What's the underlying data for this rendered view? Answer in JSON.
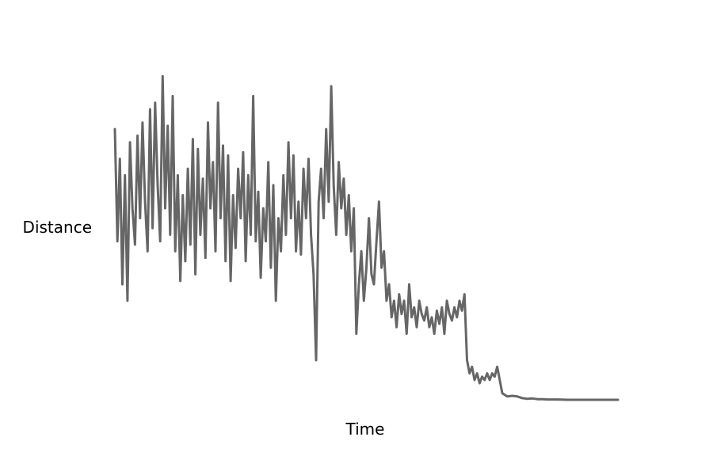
{
  "chart_data": {
    "type": "line",
    "title": "",
    "xlabel": "Time",
    "ylabel": "Distance",
    "axes_visible": false,
    "grid": false,
    "legend": "none",
    "line_color": "#666666",
    "xlim": [
      0,
      1000
    ],
    "ylim": [
      0,
      1
    ],
    "series": [
      {
        "name": "",
        "points": [
          [
            0,
            0.82
          ],
          [
            5,
            0.48
          ],
          [
            10,
            0.73
          ],
          [
            15,
            0.35
          ],
          [
            20,
            0.68
          ],
          [
            25,
            0.3
          ],
          [
            30,
            0.78
          ],
          [
            35,
            0.58
          ],
          [
            40,
            0.47
          ],
          [
            45,
            0.8
          ],
          [
            50,
            0.55
          ],
          [
            55,
            0.84
          ],
          [
            60,
            0.6
          ],
          [
            65,
            0.45
          ],
          [
            70,
            0.88
          ],
          [
            75,
            0.52
          ],
          [
            80,
            0.9
          ],
          [
            85,
            0.65
          ],
          [
            90,
            0.48
          ],
          [
            95,
            0.98
          ],
          [
            100,
            0.58
          ],
          [
            105,
            0.83
          ],
          [
            110,
            0.5
          ],
          [
            115,
            0.92
          ],
          [
            120,
            0.45
          ],
          [
            125,
            0.68
          ],
          [
            130,
            0.36
          ],
          [
            135,
            0.62
          ],
          [
            140,
            0.42
          ],
          [
            145,
            0.7
          ],
          [
            150,
            0.47
          ],
          [
            155,
            0.79
          ],
          [
            160,
            0.38
          ],
          [
            165,
            0.76
          ],
          [
            170,
            0.5
          ],
          [
            175,
            0.67
          ],
          [
            180,
            0.43
          ],
          [
            185,
            0.84
          ],
          [
            190,
            0.58
          ],
          [
            195,
            0.72
          ],
          [
            200,
            0.45
          ],
          [
            205,
            0.9
          ],
          [
            210,
            0.55
          ],
          [
            215,
            0.77
          ],
          [
            220,
            0.42
          ],
          [
            225,
            0.74
          ],
          [
            230,
            0.36
          ],
          [
            235,
            0.62
          ],
          [
            240,
            0.46
          ],
          [
            245,
            0.7
          ],
          [
            250,
            0.55
          ],
          [
            255,
            0.75
          ],
          [
            260,
            0.42
          ],
          [
            265,
            0.68
          ],
          [
            270,
            0.5
          ],
          [
            275,
            0.92
          ],
          [
            280,
            0.48
          ],
          [
            285,
            0.63
          ],
          [
            290,
            0.37
          ],
          [
            295,
            0.58
          ],
          [
            300,
            0.48
          ],
          [
            305,
            0.72
          ],
          [
            310,
            0.4
          ],
          [
            315,
            0.65
          ],
          [
            320,
            0.3
          ],
          [
            325,
            0.55
          ],
          [
            330,
            0.45
          ],
          [
            335,
            0.68
          ],
          [
            340,
            0.5
          ],
          [
            345,
            0.78
          ],
          [
            350,
            0.55
          ],
          [
            355,
            0.74
          ],
          [
            360,
            0.45
          ],
          [
            365,
            0.6
          ],
          [
            370,
            0.44
          ],
          [
            375,
            0.7
          ],
          [
            380,
            0.55
          ],
          [
            385,
            0.73
          ],
          [
            390,
            0.5
          ],
          [
            395,
            0.38
          ],
          [
            400,
            0.12
          ],
          [
            405,
            0.6
          ],
          [
            410,
            0.7
          ],
          [
            415,
            0.55
          ],
          [
            420,
            0.82
          ],
          [
            425,
            0.6
          ],
          [
            430,
            0.95
          ],
          [
            435,
            0.65
          ],
          [
            440,
            0.5
          ],
          [
            445,
            0.72
          ],
          [
            450,
            0.58
          ],
          [
            455,
            0.67
          ],
          [
            460,
            0.5
          ],
          [
            465,
            0.62
          ],
          [
            470,
            0.45
          ],
          [
            475,
            0.58
          ],
          [
            480,
            0.2
          ],
          [
            485,
            0.35
          ],
          [
            490,
            0.45
          ],
          [
            495,
            0.3
          ],
          [
            500,
            0.4
          ],
          [
            505,
            0.55
          ],
          [
            510,
            0.38
          ],
          [
            515,
            0.35
          ],
          [
            520,
            0.48
          ],
          [
            525,
            0.6
          ],
          [
            530,
            0.4
          ],
          [
            535,
            0.45
          ],
          [
            540,
            0.3
          ],
          [
            545,
            0.35
          ],
          [
            550,
            0.25
          ],
          [
            555,
            0.3
          ],
          [
            560,
            0.22
          ],
          [
            565,
            0.32
          ],
          [
            570,
            0.26
          ],
          [
            575,
            0.3
          ],
          [
            580,
            0.2
          ],
          [
            585,
            0.35
          ],
          [
            590,
            0.25
          ],
          [
            595,
            0.28
          ],
          [
            600,
            0.22
          ],
          [
            605,
            0.3
          ],
          [
            610,
            0.26
          ],
          [
            615,
            0.24
          ],
          [
            620,
            0.28
          ],
          [
            625,
            0.22
          ],
          [
            630,
            0.25
          ],
          [
            635,
            0.2
          ],
          [
            640,
            0.27
          ],
          [
            645,
            0.23
          ],
          [
            650,
            0.28
          ],
          [
            655,
            0.2
          ],
          [
            660,
            0.3
          ],
          [
            665,
            0.26
          ],
          [
            670,
            0.24
          ],
          [
            675,
            0.28
          ],
          [
            680,
            0.25
          ],
          [
            685,
            0.3
          ],
          [
            690,
            0.27
          ],
          [
            695,
            0.32
          ],
          [
            700,
            0.12
          ],
          [
            705,
            0.08
          ],
          [
            710,
            0.1
          ],
          [
            715,
            0.06
          ],
          [
            720,
            0.08
          ],
          [
            725,
            0.05
          ],
          [
            730,
            0.07
          ],
          [
            735,
            0.06
          ],
          [
            740,
            0.08
          ],
          [
            745,
            0.06
          ],
          [
            750,
            0.08
          ],
          [
            755,
            0.07
          ],
          [
            760,
            0.1
          ],
          [
            765,
            0.06
          ],
          [
            770,
            0.02
          ],
          [
            775,
            0.015
          ],
          [
            780,
            0.01
          ],
          [
            790,
            0.012
          ],
          [
            800,
            0.01
          ],
          [
            810,
            0.005
          ],
          [
            820,
            0.003
          ],
          [
            830,
            0.004
          ],
          [
            840,
            0.002
          ],
          [
            850,
            0.002
          ],
          [
            860,
            0.001
          ],
          [
            880,
            0.001
          ],
          [
            900,
            0.0
          ],
          [
            950,
            0.0
          ],
          [
            1000,
            0.0
          ]
        ]
      }
    ]
  }
}
